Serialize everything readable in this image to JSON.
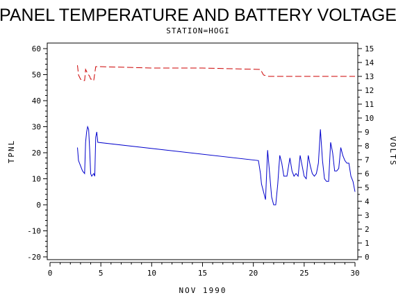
{
  "chart_data": {
    "type": "line",
    "title": "PANEL TEMPERATURE AND BATTERY VOLTAGE",
    "subtitle": "STATION=HOGI",
    "xlabel": "NOV 1990",
    "ylabel_left": "TPNL",
    "ylabel_right": "VOLTS",
    "x_range": [
      0,
      30
    ],
    "x_ticks": [
      "0",
      "5",
      "10",
      "15",
      "20",
      "25",
      "30"
    ],
    "y_left_range": [
      -20,
      60
    ],
    "y_left_ticks": [
      "-20",
      "-10",
      "0",
      "10",
      "20",
      "30",
      "40",
      "50",
      "60"
    ],
    "y_right_range": [
      0,
      15
    ],
    "y_right_ticks": [
      "0",
      "1",
      "2",
      "3",
      "4",
      "5",
      "6",
      "7",
      "8",
      "9",
      "10",
      "11",
      "12",
      "13",
      "14",
      "15"
    ],
    "grid": false,
    "series": [
      {
        "axis": "left",
        "color": "#0000cc",
        "style": "solid",
        "points": [
          [
            2.7,
            22
          ],
          [
            2.8,
            17
          ],
          [
            3.0,
            15
          ],
          [
            3.2,
            13
          ],
          [
            3.4,
            12
          ],
          [
            3.5,
            24
          ],
          [
            3.6,
            28
          ],
          [
            3.7,
            30
          ],
          [
            3.8,
            29
          ],
          [
            3.9,
            21
          ],
          [
            4.0,
            12
          ],
          [
            4.1,
            11
          ],
          [
            4.3,
            12
          ],
          [
            4.4,
            11
          ],
          [
            4.5,
            26
          ],
          [
            4.6,
            28
          ],
          [
            4.7,
            24
          ],
          [
            20.5,
            17
          ],
          [
            20.7,
            12
          ],
          [
            20.8,
            8
          ],
          [
            21.0,
            5
          ],
          [
            21.2,
            2
          ],
          [
            21.4,
            21
          ],
          [
            21.6,
            12
          ],
          [
            21.8,
            3
          ],
          [
            22.0,
            0
          ],
          [
            22.2,
            0
          ],
          [
            22.4,
            8
          ],
          [
            22.6,
            19
          ],
          [
            22.8,
            16
          ],
          [
            23.0,
            11
          ],
          [
            23.3,
            11
          ],
          [
            23.6,
            18
          ],
          [
            23.8,
            13
          ],
          [
            24.0,
            11
          ],
          [
            24.2,
            12
          ],
          [
            24.4,
            11
          ],
          [
            24.6,
            19
          ],
          [
            24.8,
            15
          ],
          [
            25.0,
            11
          ],
          [
            25.2,
            10
          ],
          [
            25.4,
            19
          ],
          [
            25.6,
            15
          ],
          [
            25.8,
            12
          ],
          [
            26.0,
            11
          ],
          [
            26.2,
            12
          ],
          [
            26.4,
            16
          ],
          [
            26.6,
            29
          ],
          [
            26.8,
            17
          ],
          [
            27.0,
            10
          ],
          [
            27.2,
            9
          ],
          [
            27.4,
            9
          ],
          [
            27.6,
            24
          ],
          [
            27.8,
            20
          ],
          [
            28.0,
            13
          ],
          [
            28.2,
            13
          ],
          [
            28.4,
            14
          ],
          [
            28.6,
            22
          ],
          [
            28.8,
            19
          ],
          [
            29.0,
            17
          ],
          [
            29.2,
            16
          ],
          [
            29.4,
            16
          ],
          [
            29.6,
            11
          ],
          [
            29.8,
            9
          ],
          [
            30.0,
            5
          ]
        ]
      },
      {
        "axis": "right",
        "color": "#cc0000",
        "style": "dashed",
        "points": [
          [
            2.7,
            13.8
          ],
          [
            2.8,
            13.1
          ],
          [
            3.0,
            12.8
          ],
          [
            3.2,
            12.7
          ],
          [
            3.4,
            12.7
          ],
          [
            3.5,
            13.5
          ],
          [
            3.7,
            13.2
          ],
          [
            3.9,
            13.0
          ],
          [
            4.0,
            12.8
          ],
          [
            4.2,
            12.8
          ],
          [
            4.3,
            12.7
          ],
          [
            4.5,
            13.7
          ],
          [
            5.0,
            13.7
          ],
          [
            10.0,
            13.6
          ],
          [
            15.0,
            13.6
          ],
          [
            20.7,
            13.5
          ],
          [
            21.0,
            13.1
          ],
          [
            21.5,
            13.0
          ],
          [
            25.0,
            13.0
          ],
          [
            30.0,
            13.0
          ]
        ]
      }
    ]
  }
}
